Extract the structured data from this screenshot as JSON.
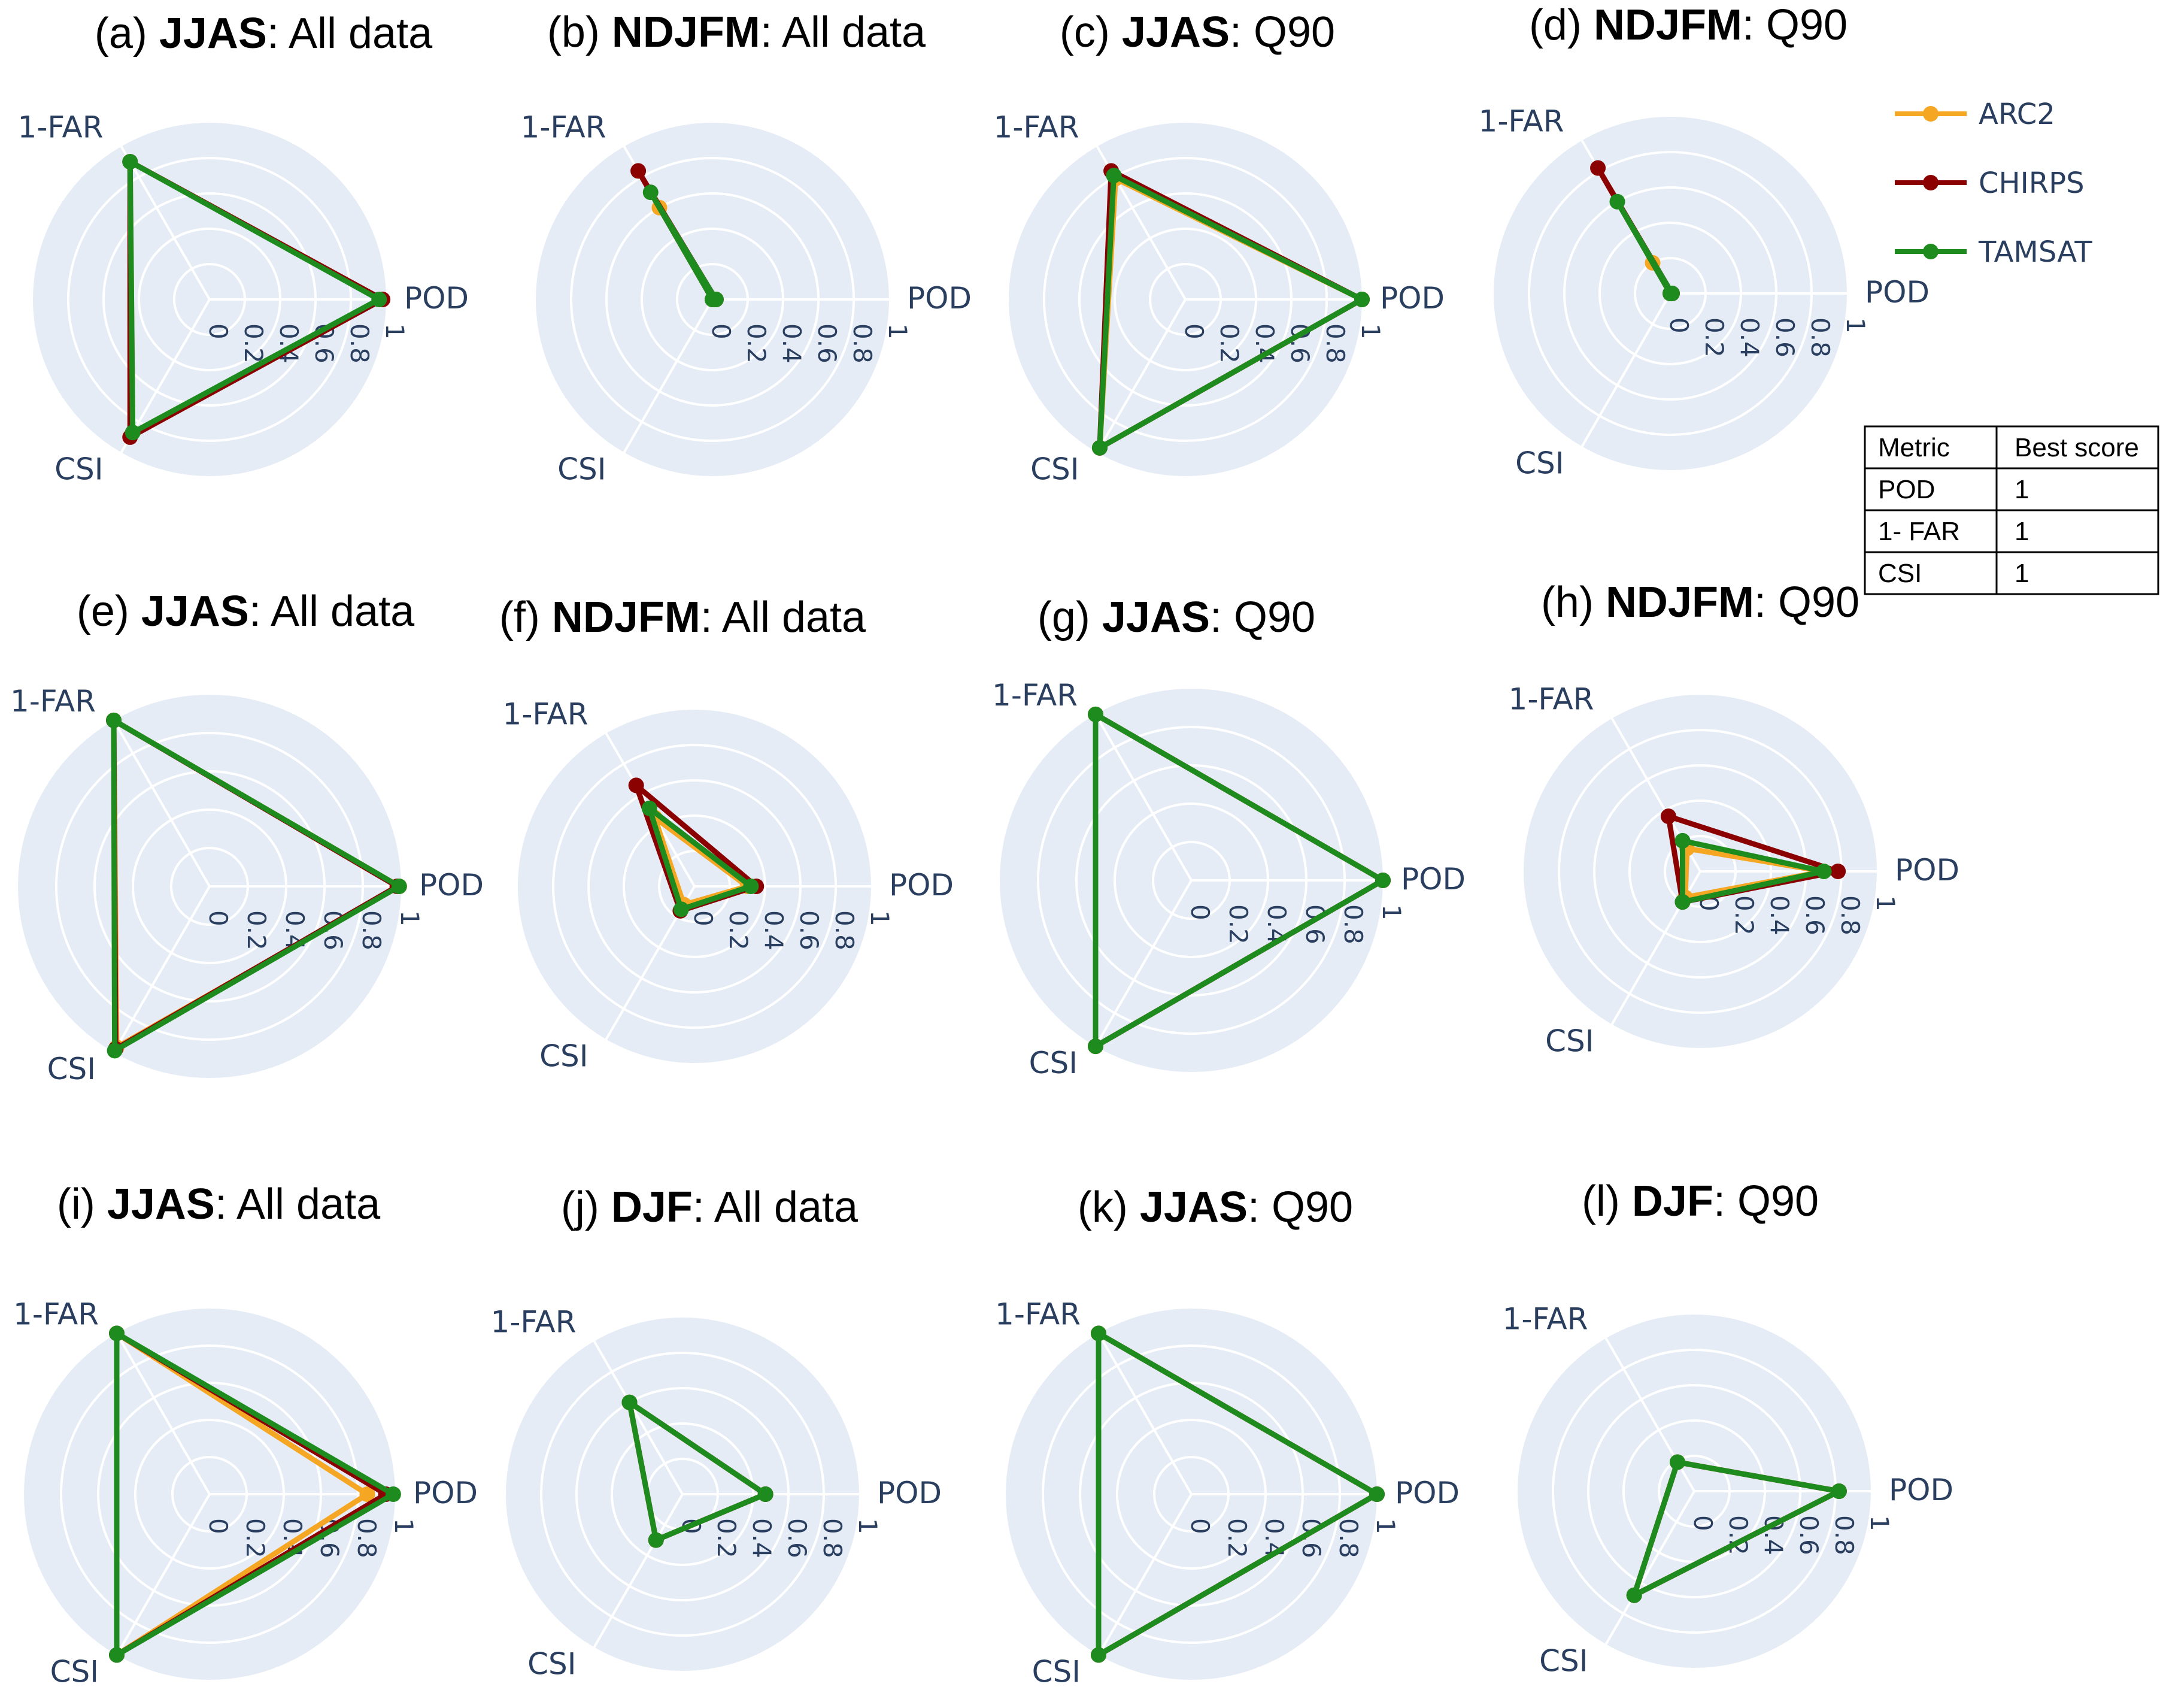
{
  "chart_data": {
    "type": "radar",
    "axes": [
      "POD",
      "1-FAR",
      "CSI"
    ],
    "radial_ticks": [
      "0",
      "0.2",
      "0.4",
      "0.6",
      "0.8",
      "1"
    ],
    "radial_range": [
      0,
      1
    ],
    "colors": {
      "ARC2": "#f5a623",
      "CHIRPS": "#8b0000",
      "TAMSAT": "#1e8b1e"
    },
    "legend": [
      "ARC2",
      "CHIRPS",
      "TAMSAT"
    ],
    "panels": [
      {
        "id": "a",
        "prefix": "(a) ",
        "bold": "JJAS",
        "suffix": ": All data",
        "series": [
          {
            "name": "ARC2",
            "values": [
              0.97,
              0.9,
              0.87
            ]
          },
          {
            "name": "CHIRPS",
            "values": [
              0.98,
              0.9,
              0.9
            ]
          },
          {
            "name": "TAMSAT",
            "values": [
              0.96,
              0.9,
              0.87
            ]
          }
        ]
      },
      {
        "id": "b",
        "prefix": "(b) ",
        "bold": "NDJFM",
        "suffix": ": All data",
        "series": [
          {
            "name": "ARC2",
            "values": [
              0.02,
              0.6,
              0.0
            ]
          },
          {
            "name": "CHIRPS",
            "values": [
              0.02,
              0.84,
              0.0
            ]
          },
          {
            "name": "TAMSAT",
            "values": [
              0.02,
              0.7,
              0.0
            ]
          }
        ]
      },
      {
        "id": "c",
        "prefix": "(c) ",
        "bold": "JJAS",
        "suffix": ": Q90",
        "series": [
          {
            "name": "ARC2",
            "values": [
              1.0,
              0.79,
              0.97
            ]
          },
          {
            "name": "CHIRPS",
            "values": [
              1.0,
              0.84,
              0.97
            ]
          },
          {
            "name": "TAMSAT",
            "values": [
              1.0,
              0.81,
              0.97
            ]
          }
        ]
      },
      {
        "id": "d",
        "prefix": "(d) ",
        "bold": "NDJFM",
        "suffix": ": Q90",
        "series": [
          {
            "name": "ARC2",
            "values": [
              0.01,
              0.2,
              0.0
            ]
          },
          {
            "name": "CHIRPS",
            "values": [
              0.01,
              0.82,
              0.0
            ]
          },
          {
            "name": "TAMSAT",
            "values": [
              0.01,
              0.6,
              0.0
            ]
          }
        ]
      },
      {
        "id": "e",
        "prefix": "(e) ",
        "bold": "JJAS",
        "suffix": ": All data",
        "series": [
          {
            "name": "ARC2",
            "values": [
              0.99,
              1.0,
              0.97
            ]
          },
          {
            "name": "CHIRPS",
            "values": [
              0.98,
              1.0,
              0.98
            ]
          },
          {
            "name": "TAMSAT",
            "values": [
              0.99,
              1.0,
              0.99
            ]
          }
        ]
      },
      {
        "id": "f",
        "prefix": "(f) ",
        "bold": "NDJFM",
        "suffix": ": All data",
        "series": [
          {
            "name": "ARC2",
            "values": [
              0.3,
              0.45,
              0.12
            ]
          },
          {
            "name": "CHIRPS",
            "values": [
              0.35,
              0.66,
              0.16
            ]
          },
          {
            "name": "TAMSAT",
            "values": [
              0.32,
              0.51,
              0.15
            ]
          }
        ]
      },
      {
        "id": "g",
        "prefix": "(g) ",
        "bold": "JJAS",
        "suffix": ": Q90",
        "series": [
          {
            "name": "ARC2",
            "values": [
              1.0,
              1.0,
              1.0
            ]
          },
          {
            "name": "CHIRPS",
            "values": [
              1.0,
              1.0,
              1.0
            ]
          },
          {
            "name": "TAMSAT",
            "values": [
              1.0,
              1.0,
              1.0
            ]
          }
        ]
      },
      {
        "id": "h",
        "prefix": "(h) ",
        "bold": "NDJFM",
        "suffix": ": Q90",
        "series": [
          {
            "name": "ARC2",
            "values": [
              0.7,
              0.15,
              0.17
            ]
          },
          {
            "name": "CHIRPS",
            "values": [
              0.78,
              0.36,
              0.2
            ]
          },
          {
            "name": "TAMSAT",
            "values": [
              0.7,
              0.2,
              0.2
            ]
          }
        ]
      },
      {
        "id": "i",
        "prefix": "(i) ",
        "bold": "JJAS",
        "suffix": ": All data",
        "series": [
          {
            "name": "ARC2",
            "values": [
              0.85,
              1.0,
              1.0
            ]
          },
          {
            "name": "CHIRPS",
            "values": [
              0.95,
              1.0,
              1.0
            ]
          },
          {
            "name": "TAMSAT",
            "values": [
              0.99,
              1.0,
              1.0
            ]
          }
        ]
      },
      {
        "id": "j",
        "prefix": "(j) ",
        "bold": "DJF",
        "suffix": ": All data",
        "series": [
          {
            "name": "ARC2",
            "values": [
              0.47,
              0.6,
              0.3
            ]
          },
          {
            "name": "CHIRPS",
            "values": [
              0.47,
              0.6,
              0.3
            ]
          },
          {
            "name": "TAMSAT",
            "values": [
              0.47,
              0.6,
              0.3
            ]
          }
        ]
      },
      {
        "id": "k",
        "prefix": "(k) ",
        "bold": "JJAS",
        "suffix": ": Q90",
        "series": [
          {
            "name": "ARC2",
            "values": [
              1.0,
              1.0,
              1.0
            ]
          },
          {
            "name": "CHIRPS",
            "values": [
              1.0,
              1.0,
              1.0
            ]
          },
          {
            "name": "TAMSAT",
            "values": [
              1.0,
              1.0,
              1.0
            ]
          }
        ]
      },
      {
        "id": "l",
        "prefix": "(l) ",
        "bold": "DJF",
        "suffix": ": Q90",
        "series": [
          {
            "name": "ARC2",
            "values": [
              0.82,
              0.19,
              0.68
            ]
          },
          {
            "name": "CHIRPS",
            "values": [
              0.82,
              0.19,
              0.68
            ]
          },
          {
            "name": "TAMSAT",
            "values": [
              0.82,
              0.19,
              0.68
            ]
          }
        ]
      }
    ]
  },
  "score_table": {
    "headers": [
      "Metric",
      "Best score"
    ],
    "rows": [
      [
        "POD",
        "1"
      ],
      [
        "1- FAR",
        "1"
      ],
      [
        "CSI",
        "1"
      ]
    ]
  }
}
